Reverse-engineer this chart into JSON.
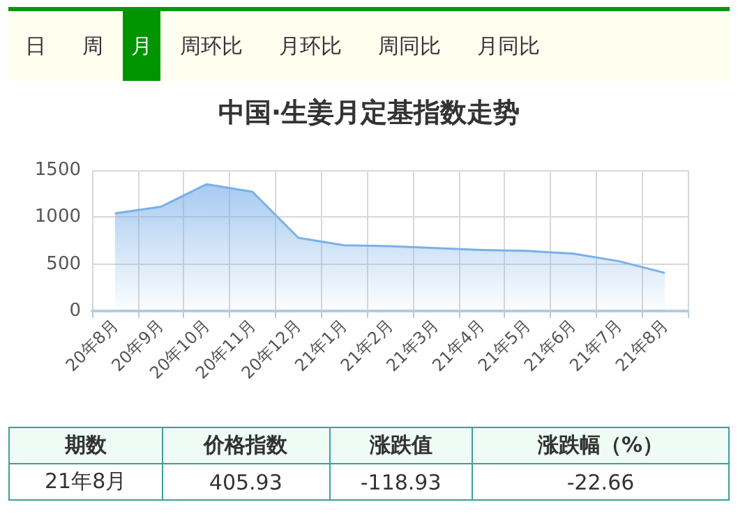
{
  "chart_data": {
    "type": "area",
    "title": "中国·生姜月定基指数走势",
    "categories": [
      "20年8月",
      "20年9月",
      "20年10月",
      "20年11月",
      "20年12月",
      "21年1月",
      "21年2月",
      "21年3月",
      "21年4月",
      "21年5月",
      "21年6月",
      "21年7月",
      "21年8月"
    ],
    "series": [
      {
        "color": "#7ab0e8",
        "values": [
          1040,
          1110,
          1350,
          1270,
          780,
          700,
          690,
          670,
          650,
          640,
          610,
          530,
          405.93
        ]
      }
    ],
    "ylim": [
      0,
      1500
    ],
    "yticks": [
      0,
      500,
      1000,
      1500
    ],
    "grid": true,
    "marker": "none",
    "annotations": [
      "日",
      "周",
      "月",
      "周环比",
      "月环比",
      "周同比",
      "月同比",
      "期数",
      "价格指数",
      "涨跌值",
      "涨跌幅（%）",
      "21年8月",
      "405.93",
      "-118.93",
      "-22.66"
    ]
  }
}
